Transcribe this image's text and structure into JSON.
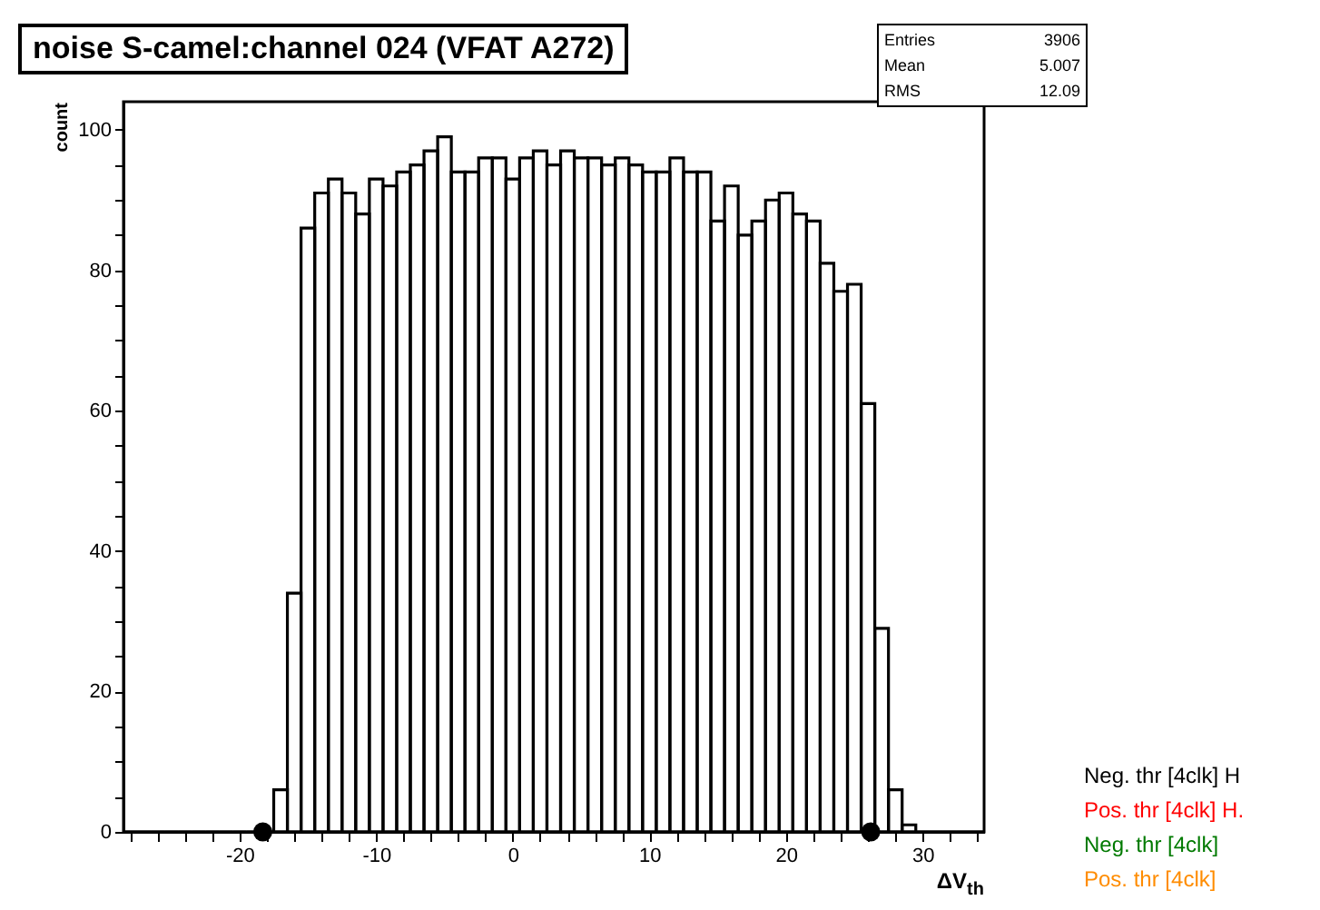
{
  "chart_data": {
    "type": "histogram",
    "title": "noise S-camel:channel 024 (VFAT A272)",
    "xlabel": "ΔV$_{th}$",
    "ylabel": "count",
    "bins": [
      -28.5,
      -27.5,
      -26.5,
      -25.5,
      -24.5,
      -23.5,
      -22.5,
      -21.5,
      -20.5,
      -19.5,
      -18.5,
      -17.5,
      -16.5,
      -15.5,
      -14.5,
      -13.5,
      -12.5,
      -11.5,
      -10.5,
      -9.5,
      -8.5,
      -7.5,
      -6.5,
      -5.5,
      -4.5,
      -3.5,
      -2.5,
      -1.5,
      -0.5,
      0.5,
      1.5,
      2.5,
      3.5,
      4.5,
      5.5,
      6.5,
      7.5,
      8.5,
      9.5,
      10.5,
      11.5,
      12.5,
      13.5,
      14.5,
      15.5,
      16.5,
      17.5,
      18.5,
      19.5,
      20.5,
      21.5,
      22.5,
      23.5,
      24.5,
      25.5,
      26.5,
      27.5,
      28.5,
      29.5,
      30.5,
      31.5,
      32.5,
      33.5,
      34.5
    ],
    "series": [
      {
        "color": "#000000",
        "values": [
          0,
          0,
          0,
          0,
          0,
          0,
          0,
          0,
          0,
          0,
          0,
          6,
          34,
          86,
          91,
          93,
          91,
          88,
          93,
          92,
          94,
          95,
          97,
          99,
          94,
          94,
          96,
          96,
          93,
          96,
          97,
          95,
          97,
          96,
          96,
          95,
          96,
          95,
          94,
          94,
          96,
          94,
          94,
          87,
          92,
          85,
          87,
          90,
          91,
          88,
          87,
          81,
          77,
          78,
          61,
          29,
          6,
          1,
          0,
          0,
          0,
          0,
          0
        ]
      },
      {
        "type": "scatter",
        "color": "#000000",
        "marker": "circle",
        "x": [
          -18.3,
          26.2
        ],
        "values": [
          0,
          0
        ]
      }
    ],
    "xlim": [
      -28.5,
      34.5
    ],
    "xticks": [
      {
        "value": -28,
        "label": null
      },
      {
        "value": -26,
        "label": null
      },
      {
        "value": -24,
        "label": null
      },
      {
        "value": -22,
        "label": null
      },
      -20,
      {
        "value": -18,
        "label": null
      },
      {
        "value": -16,
        "label": null
      },
      {
        "value": -14,
        "label": null
      },
      {
        "value": -12,
        "label": null
      },
      -10,
      {
        "value": -8,
        "label": null
      },
      {
        "value": -6,
        "label": null
      },
      {
        "value": -4,
        "label": null
      },
      {
        "value": -2,
        "label": null
      },
      0,
      {
        "value": 2,
        "label": null
      },
      {
        "value": 4,
        "label": null
      },
      {
        "value": 6,
        "label": null
      },
      {
        "value": 8,
        "label": null
      },
      10,
      {
        "value": 12,
        "label": null
      },
      {
        "value": 14,
        "label": null
      },
      {
        "value": 16,
        "label": null
      },
      {
        "value": 18,
        "label": null
      },
      20,
      {
        "value": 22,
        "label": null
      },
      {
        "value": 24,
        "label": null
      },
      {
        "value": 26,
        "label": null
      },
      {
        "value": 28,
        "label": null
      },
      30,
      {
        "value": 32,
        "label": null
      },
      {
        "value": 34,
        "label": null
      }
    ],
    "ylim": [
      0,
      104
    ],
    "yticks": [
      0,
      {
        "value": 5,
        "label": null
      },
      {
        "value": 10,
        "label": null
      },
      {
        "value": 15,
        "label": null
      },
      20,
      {
        "value": 25,
        "label": null
      },
      {
        "value": 30,
        "label": null
      },
      {
        "value": 35,
        "label": null
      },
      40,
      {
        "value": 45,
        "label": null
      },
      {
        "value": 50,
        "label": null
      },
      {
        "value": 55,
        "label": null
      },
      60,
      {
        "value": 65,
        "label": null
      },
      {
        "value": 70,
        "label": null
      },
      {
        "value": 75,
        "label": null
      },
      80,
      {
        "value": 85,
        "label": null
      },
      {
        "value": 90,
        "label": null
      },
      {
        "value": 95,
        "label": null
      },
      100
    ],
    "grid": false,
    "annotations": [
      "Entries 3906",
      "Mean 5.007",
      "RMS 12.09",
      "Neg. thr [4clk] H",
      "Pos. thr [4clk] H.",
      "Neg. thr [4clk]",
      "Pos. thr [4clk]"
    ]
  }
}
